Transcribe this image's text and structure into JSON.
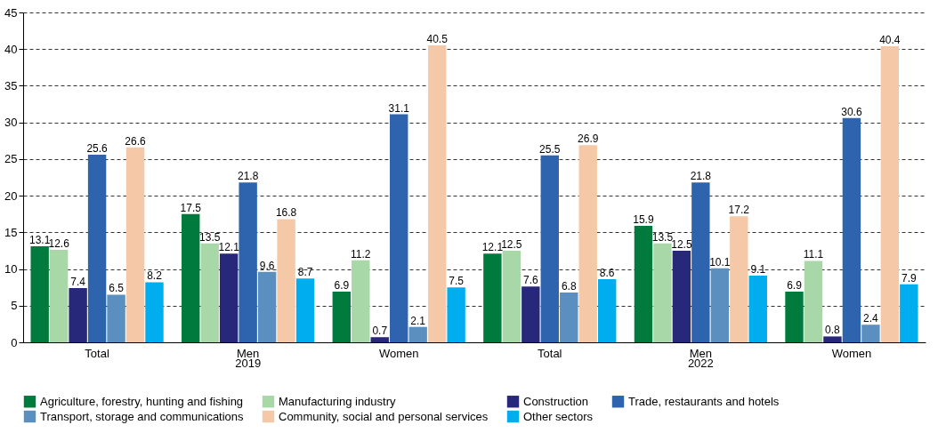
{
  "chart_data": {
    "type": "bar",
    "categories": [
      "Total",
      "Men",
      "Women",
      "Total",
      "Men",
      "Women"
    ],
    "annotations": [
      "2019",
      "2022"
    ],
    "series": [
      {
        "name": "Agriculture, forestry, hunting and fishing",
        "color": "#007a3d",
        "values": [
          13.1,
          17.5,
          6.9,
          12.1,
          15.9,
          6.9
        ]
      },
      {
        "name": "Manufacturing industry",
        "color": "#a8d8a8",
        "values": [
          12.6,
          13.5,
          11.2,
          12.5,
          13.5,
          11.1
        ]
      },
      {
        "name": "Construction",
        "color": "#27287a",
        "values": [
          7.4,
          12.1,
          0.7,
          7.6,
          12.5,
          0.8
        ]
      },
      {
        "name": "Trade, restaurants and hotels",
        "color": "#2e64ae",
        "values": [
          25.6,
          21.8,
          31.1,
          25.5,
          21.8,
          30.6
        ]
      },
      {
        "name": "Transport, storage and communications",
        "color": "#5a8fbf",
        "values": [
          6.5,
          9.6,
          2.1,
          6.8,
          10.1,
          2.4
        ]
      },
      {
        "name": "Community, social and personal services",
        "color": "#f5c9a8",
        "values": [
          26.6,
          16.8,
          40.5,
          26.9,
          17.2,
          40.4
        ]
      },
      {
        "name": "Other sectors",
        "color": "#00adef",
        "values": [
          8.2,
          8.7,
          7.5,
          8.6,
          9.1,
          7.9
        ]
      }
    ],
    "ylim": [
      0,
      45
    ],
    "yticks": [
      0,
      5,
      10,
      15,
      20,
      25,
      30,
      35,
      40,
      45
    ],
    "grid": "y",
    "legend": "bottom",
    "data_labels": true
  }
}
